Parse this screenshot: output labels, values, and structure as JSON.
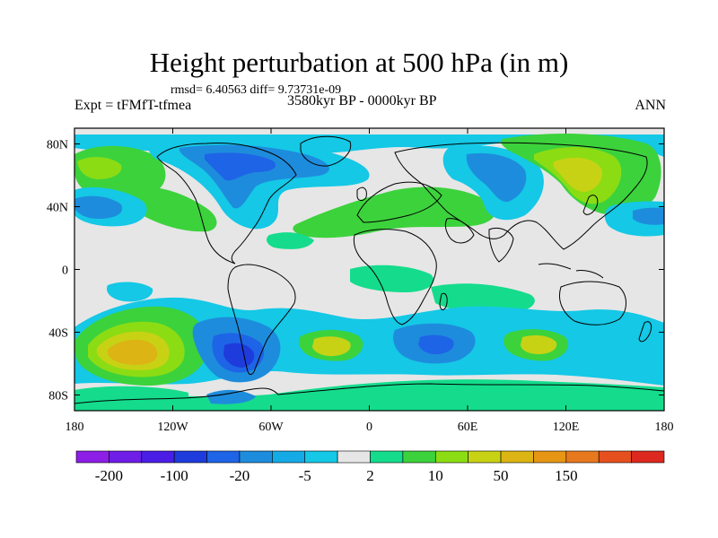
{
  "title": "Height perturbation at 500 hPa (in m)",
  "stats": "rmsd= 6.40563 diff= 9.73731e-09",
  "experiment": "Expt = tFMfT-tfmea",
  "period": "3580kyr BP - 0000kyr BP",
  "season": "ANN",
  "lat_ticks": [
    "80N",
    "40N",
    "0",
    "40S",
    "80S"
  ],
  "lat_values": [
    80,
    40,
    0,
    -40,
    -80
  ],
  "lon_ticks": [
    "180",
    "120W",
    "60W",
    "0",
    "60E",
    "120E",
    "180"
  ],
  "lon_values": [
    -180,
    -120,
    -60,
    0,
    60,
    120,
    180
  ],
  "colorbar": {
    "colors": [
      "#8c1ee6",
      "#6e1ee6",
      "#4b1ee6",
      "#1e3cdc",
      "#1e64e6",
      "#1e8cdc",
      "#14aae6",
      "#14c8e6",
      "#e6e6e6",
      "#14dc8c",
      "#3cd23c",
      "#8cdc14",
      "#c8d214",
      "#dcb414",
      "#e69614",
      "#e6781e",
      "#e6501e",
      "#dc281e"
    ],
    "labels": [
      "-200",
      "-100",
      "-20",
      "-5",
      "2",
      "10",
      "50",
      "150"
    ]
  },
  "colors": {
    "background": "#e6e6e6",
    "coast": "#000000"
  }
}
